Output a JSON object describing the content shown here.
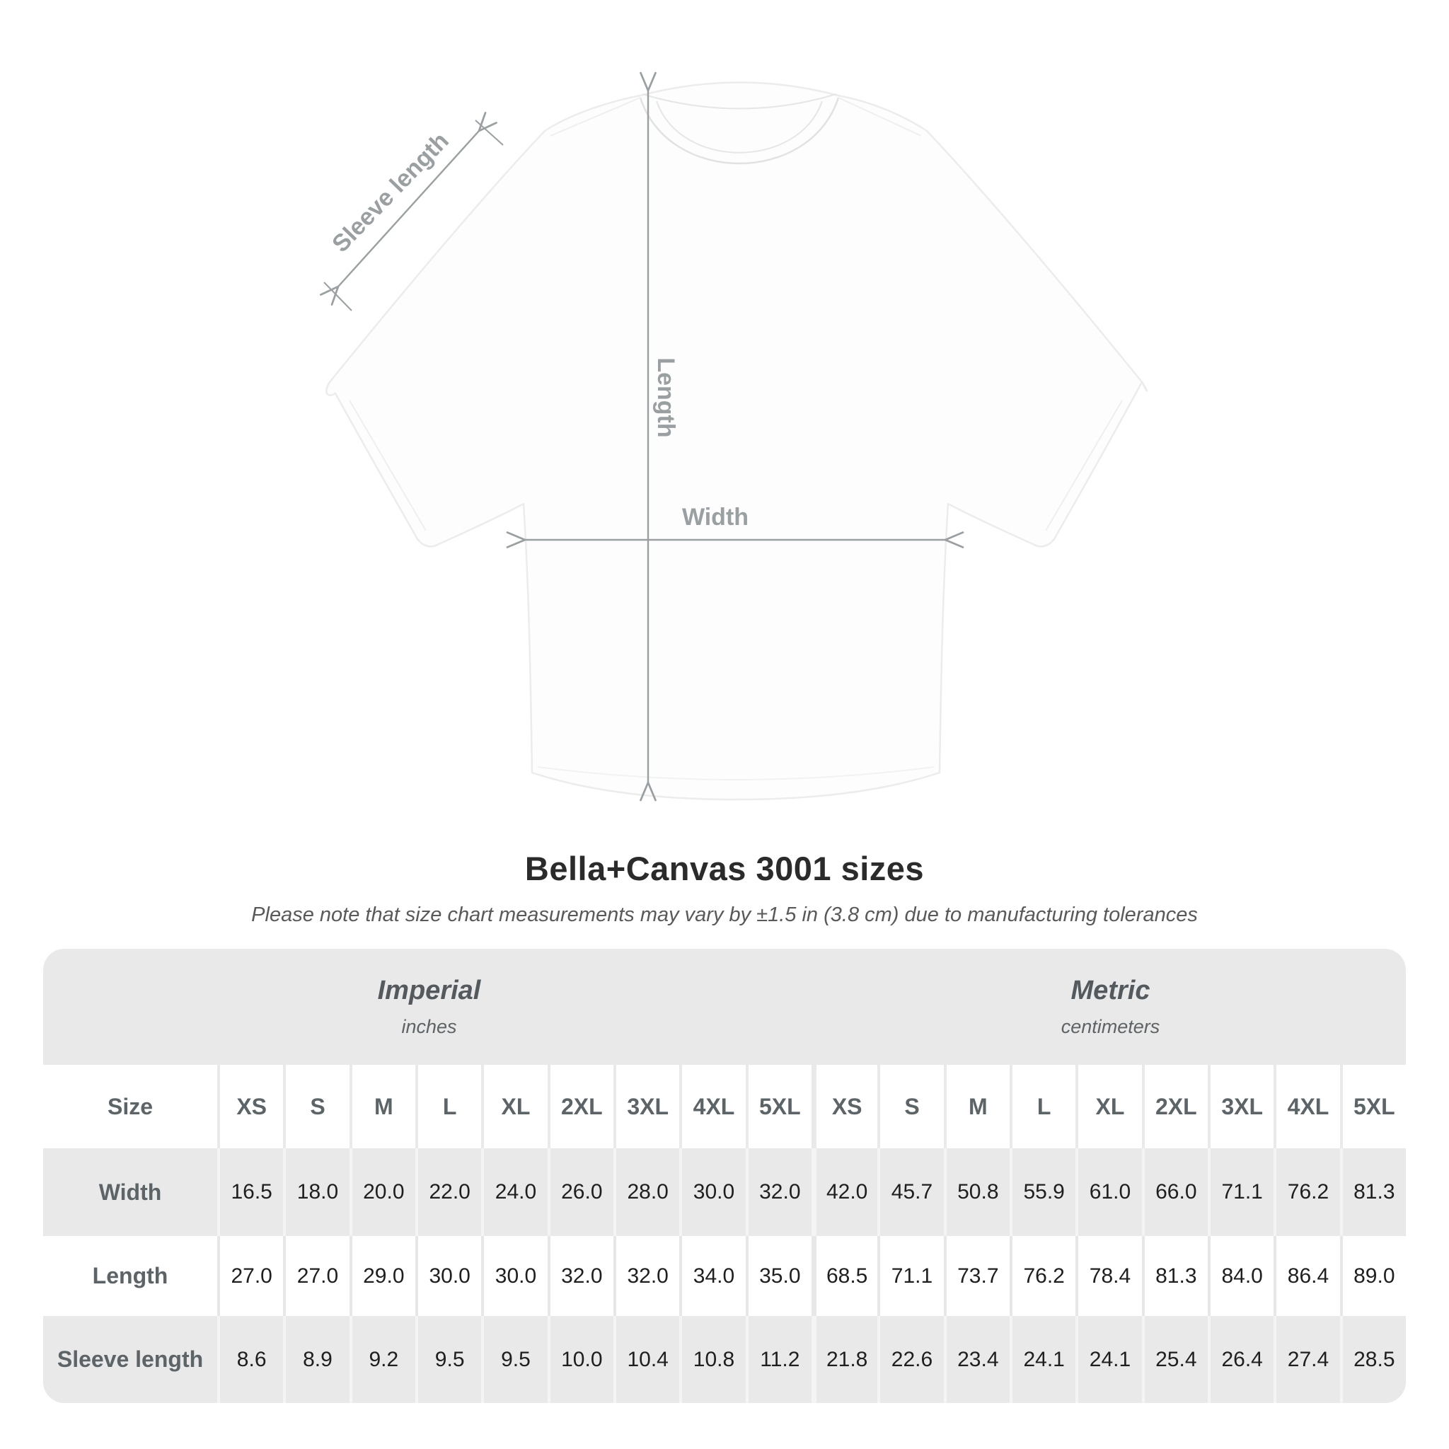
{
  "title": "Bella+Canvas 3001 sizes",
  "subtitle": "Please note that size chart measurements may vary by ±1.5 in (3.8 cm) due to manufacturing tolerances",
  "diagram": {
    "labels": {
      "sleeve": "Sleeve length",
      "length": "Length",
      "width": "Width"
    },
    "annotation_color": "#9a9fa2",
    "shirt_color": "#fdfdfd"
  },
  "table": {
    "unit_groups": [
      {
        "name": "Imperial",
        "sub": "inches"
      },
      {
        "name": "Metric",
        "sub": "centimeters"
      }
    ],
    "size_header": "Size",
    "columns": [
      "XS",
      "S",
      "M",
      "L",
      "XL",
      "2XL",
      "3XL",
      "4XL",
      "5XL",
      "XS",
      "S",
      "M",
      "L",
      "XL",
      "2XL",
      "3XL",
      "4XL",
      "5XL"
    ],
    "rows": [
      {
        "label": "Width",
        "values": [
          "16.5",
          "18.0",
          "20.0",
          "22.0",
          "24.0",
          "26.0",
          "28.0",
          "30.0",
          "32.0",
          "42.0",
          "45.7",
          "50.8",
          "55.9",
          "61.0",
          "66.0",
          "71.1",
          "76.2",
          "81.3"
        ]
      },
      {
        "label": "Length",
        "values": [
          "27.0",
          "27.0",
          "29.0",
          "30.0",
          "30.0",
          "32.0",
          "32.0",
          "34.0",
          "35.0",
          "68.5",
          "71.1",
          "73.7",
          "76.2",
          "78.4",
          "81.3",
          "84.0",
          "86.4",
          "89.0"
        ]
      },
      {
        "label": "Sleeve length",
        "values": [
          "8.6",
          "8.9",
          "9.2",
          "9.5",
          "9.5",
          "10.0",
          "10.4",
          "10.8",
          "11.2",
          "21.8",
          "22.6",
          "23.4",
          "24.1",
          "24.1",
          "25.4",
          "26.4",
          "27.4",
          "28.5"
        ]
      }
    ]
  },
  "chart_data": {
    "type": "table",
    "title": "Bella+Canvas 3001 sizes",
    "unit_groups": [
      "Imperial (inches)",
      "Metric (centimeters)"
    ],
    "categories": [
      "XS",
      "S",
      "M",
      "L",
      "XL",
      "2XL",
      "3XL",
      "4XL",
      "5XL"
    ],
    "series": [
      {
        "name": "Width (in)",
        "values": [
          16.5,
          18.0,
          20.0,
          22.0,
          24.0,
          26.0,
          28.0,
          30.0,
          32.0
        ]
      },
      {
        "name": "Length (in)",
        "values": [
          27.0,
          27.0,
          29.0,
          30.0,
          30.0,
          32.0,
          32.0,
          34.0,
          35.0
        ]
      },
      {
        "name": "Sleeve length (in)",
        "values": [
          8.6,
          8.9,
          9.2,
          9.5,
          9.5,
          10.0,
          10.4,
          10.8,
          11.2
        ]
      },
      {
        "name": "Width (cm)",
        "values": [
          42.0,
          45.7,
          50.8,
          55.9,
          61.0,
          66.0,
          71.1,
          76.2,
          81.3
        ]
      },
      {
        "name": "Length (cm)",
        "values": [
          68.5,
          71.1,
          73.7,
          76.2,
          78.4,
          81.3,
          84.0,
          86.4,
          89.0
        ]
      },
      {
        "name": "Sleeve length (cm)",
        "values": [
          21.8,
          22.6,
          23.4,
          24.1,
          24.1,
          25.4,
          26.4,
          27.4,
          28.5
        ]
      }
    ]
  }
}
